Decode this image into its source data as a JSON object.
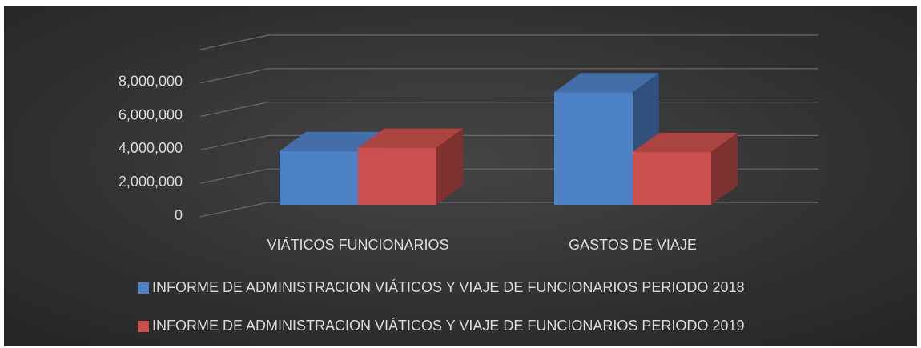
{
  "chart_data": {
    "type": "bar3d",
    "categories": [
      "VIÁTICOS FUNCIONARIOS",
      "GASTOS DE VIAJE"
    ],
    "series": [
      {
        "name": "INFORME DE ADMINISTRACION VIÁTICOS Y VIAJE DE FUNCIONARIOS PERIODO 2018",
        "color": "#4f81c7",
        "values": [
          3200000,
          6700000
        ]
      },
      {
        "name": "INFORME DE ADMINISTRACION VIÁTICOS Y VIAJE DE FUNCIONARIOS PERIODO 2019",
        "color": "#c9504d",
        "values": [
          3400000,
          3150000
        ]
      }
    ],
    "ylim": [
      0,
      10000000
    ],
    "yticks": [
      0,
      {
        "value": 2000000,
        "label": "2,000,000"
      },
      {
        "value": 4000000,
        "label": "4,000,000"
      },
      {
        "value": 6000000,
        "label": "6,000,000"
      },
      {
        "value": 8000000,
        "label": "8,000,000"
      }
    ],
    "grid": true,
    "legend": "bottom"
  }
}
